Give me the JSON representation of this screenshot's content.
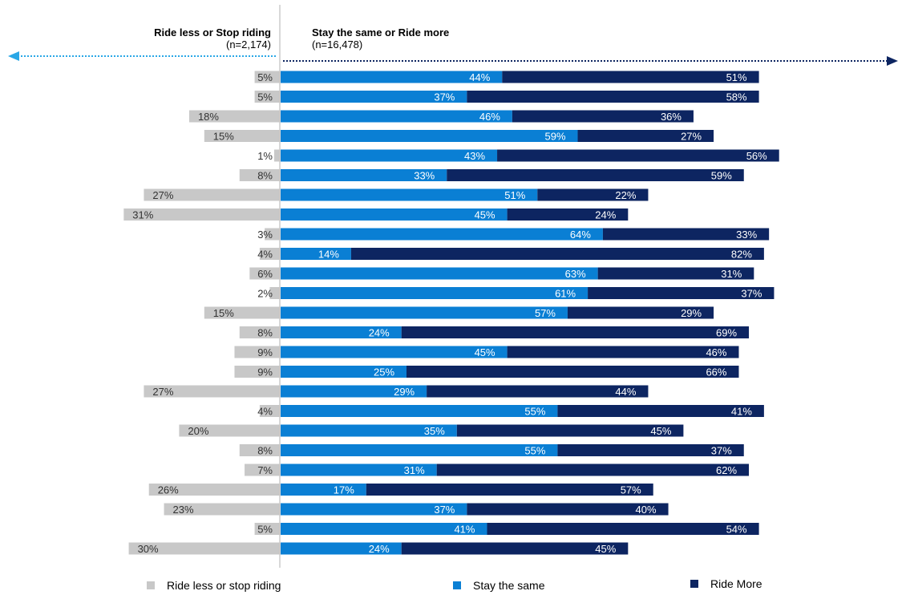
{
  "headers": {
    "left_title": "Ride less or Stop riding",
    "left_n": "(n=2,174)",
    "right_title": "Stay the same or Ride more",
    "right_n": "(n=16,478)"
  },
  "legend": {
    "less_label": "Ride less or stop riding",
    "same_label": "Stay the same",
    "more_label": "Ride More"
  },
  "colors": {
    "less": "#c8c8c8",
    "same": "#0a7fd4",
    "more": "#0d2561",
    "left_arrow": "#2aa7e6",
    "right_arrow": "#0d2561",
    "axis": "#bfbfbf"
  },
  "chart_data": {
    "type": "bar",
    "orientation": "horizontal-diverging",
    "series": [
      {
        "name": "Ride less or stop riding",
        "values": [
          5,
          5,
          18,
          15,
          1,
          8,
          27,
          31,
          3,
          4,
          6,
          2,
          15,
          8,
          9,
          9,
          27,
          4,
          20,
          8,
          7,
          26,
          23,
          5,
          30
        ]
      },
      {
        "name": "Stay the same",
        "values": [
          44,
          37,
          46,
          59,
          43,
          33,
          51,
          45,
          64,
          14,
          63,
          61,
          57,
          24,
          45,
          25,
          29,
          55,
          35,
          55,
          31,
          17,
          37,
          41,
          24
        ]
      },
      {
        "name": "Ride More",
        "values": [
          51,
          58,
          36,
          27,
          56,
          59,
          22,
          24,
          33,
          82,
          31,
          37,
          29,
          69,
          46,
          66,
          44,
          41,
          45,
          37,
          62,
          57,
          40,
          54,
          45
        ]
      }
    ],
    "value_suffix": "%",
    "legend_position": "bottom"
  }
}
